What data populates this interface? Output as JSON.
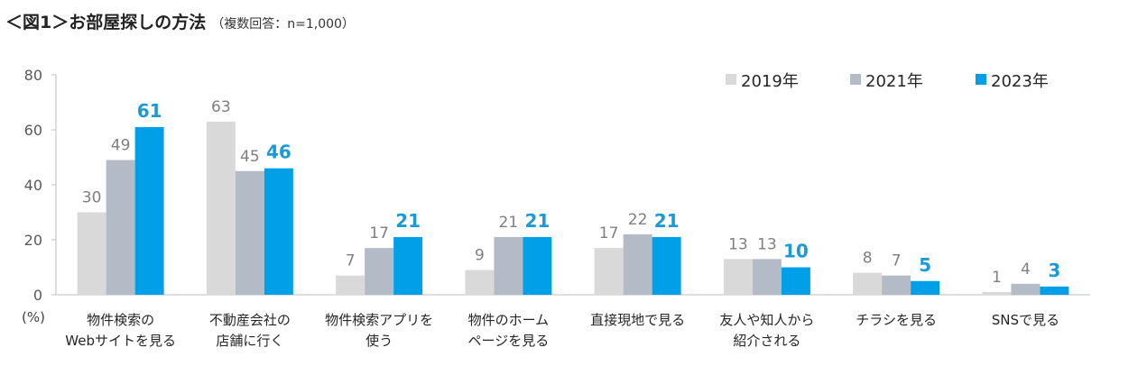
{
  "title": "＜図1＞お部屋探しの方法",
  "subtitle": "（複数回答：n=1,000）",
  "chart_data": {
    "type": "bar",
    "title": "＜図1＞お部屋探しの方法",
    "subtitle": "（複数回答：n=1,000）",
    "ylabel": "",
    "y_unit": "(%)",
    "ylim": [
      0,
      80
    ],
    "yticks": [
      0,
      20,
      40,
      60,
      80
    ],
    "grid": false,
    "legend_position": "top-right",
    "categories": [
      [
        "物件検索の",
        "Webサイトを見る"
      ],
      [
        "不動産会社の",
        "店舗に行く"
      ],
      [
        "物件検索アプリを",
        "使う"
      ],
      [
        "物件のホーム",
        "ページを見る"
      ],
      [
        "直接現地で見る"
      ],
      [
        "友人や知人から",
        "紹介される"
      ],
      [
        "チラシを見る"
      ],
      [
        "SNSで見る"
      ]
    ],
    "series": [
      {
        "name": "2019年",
        "color": "#d9d9d9",
        "label_color": "#7f7f7f",
        "label_bold": false,
        "values": [
          30,
          63,
          7,
          9,
          17,
          13,
          8,
          1
        ]
      },
      {
        "name": "2021年",
        "color": "#b3bbc7",
        "label_color": "#7f7f7f",
        "label_bold": false,
        "values": [
          49,
          45,
          17,
          21,
          22,
          13,
          7,
          4
        ]
      },
      {
        "name": "2023年",
        "color": "#00a0e9",
        "label_color": "#1b9ad6",
        "label_bold": true,
        "values": [
          61,
          46,
          21,
          21,
          21,
          10,
          5,
          3
        ]
      }
    ]
  }
}
